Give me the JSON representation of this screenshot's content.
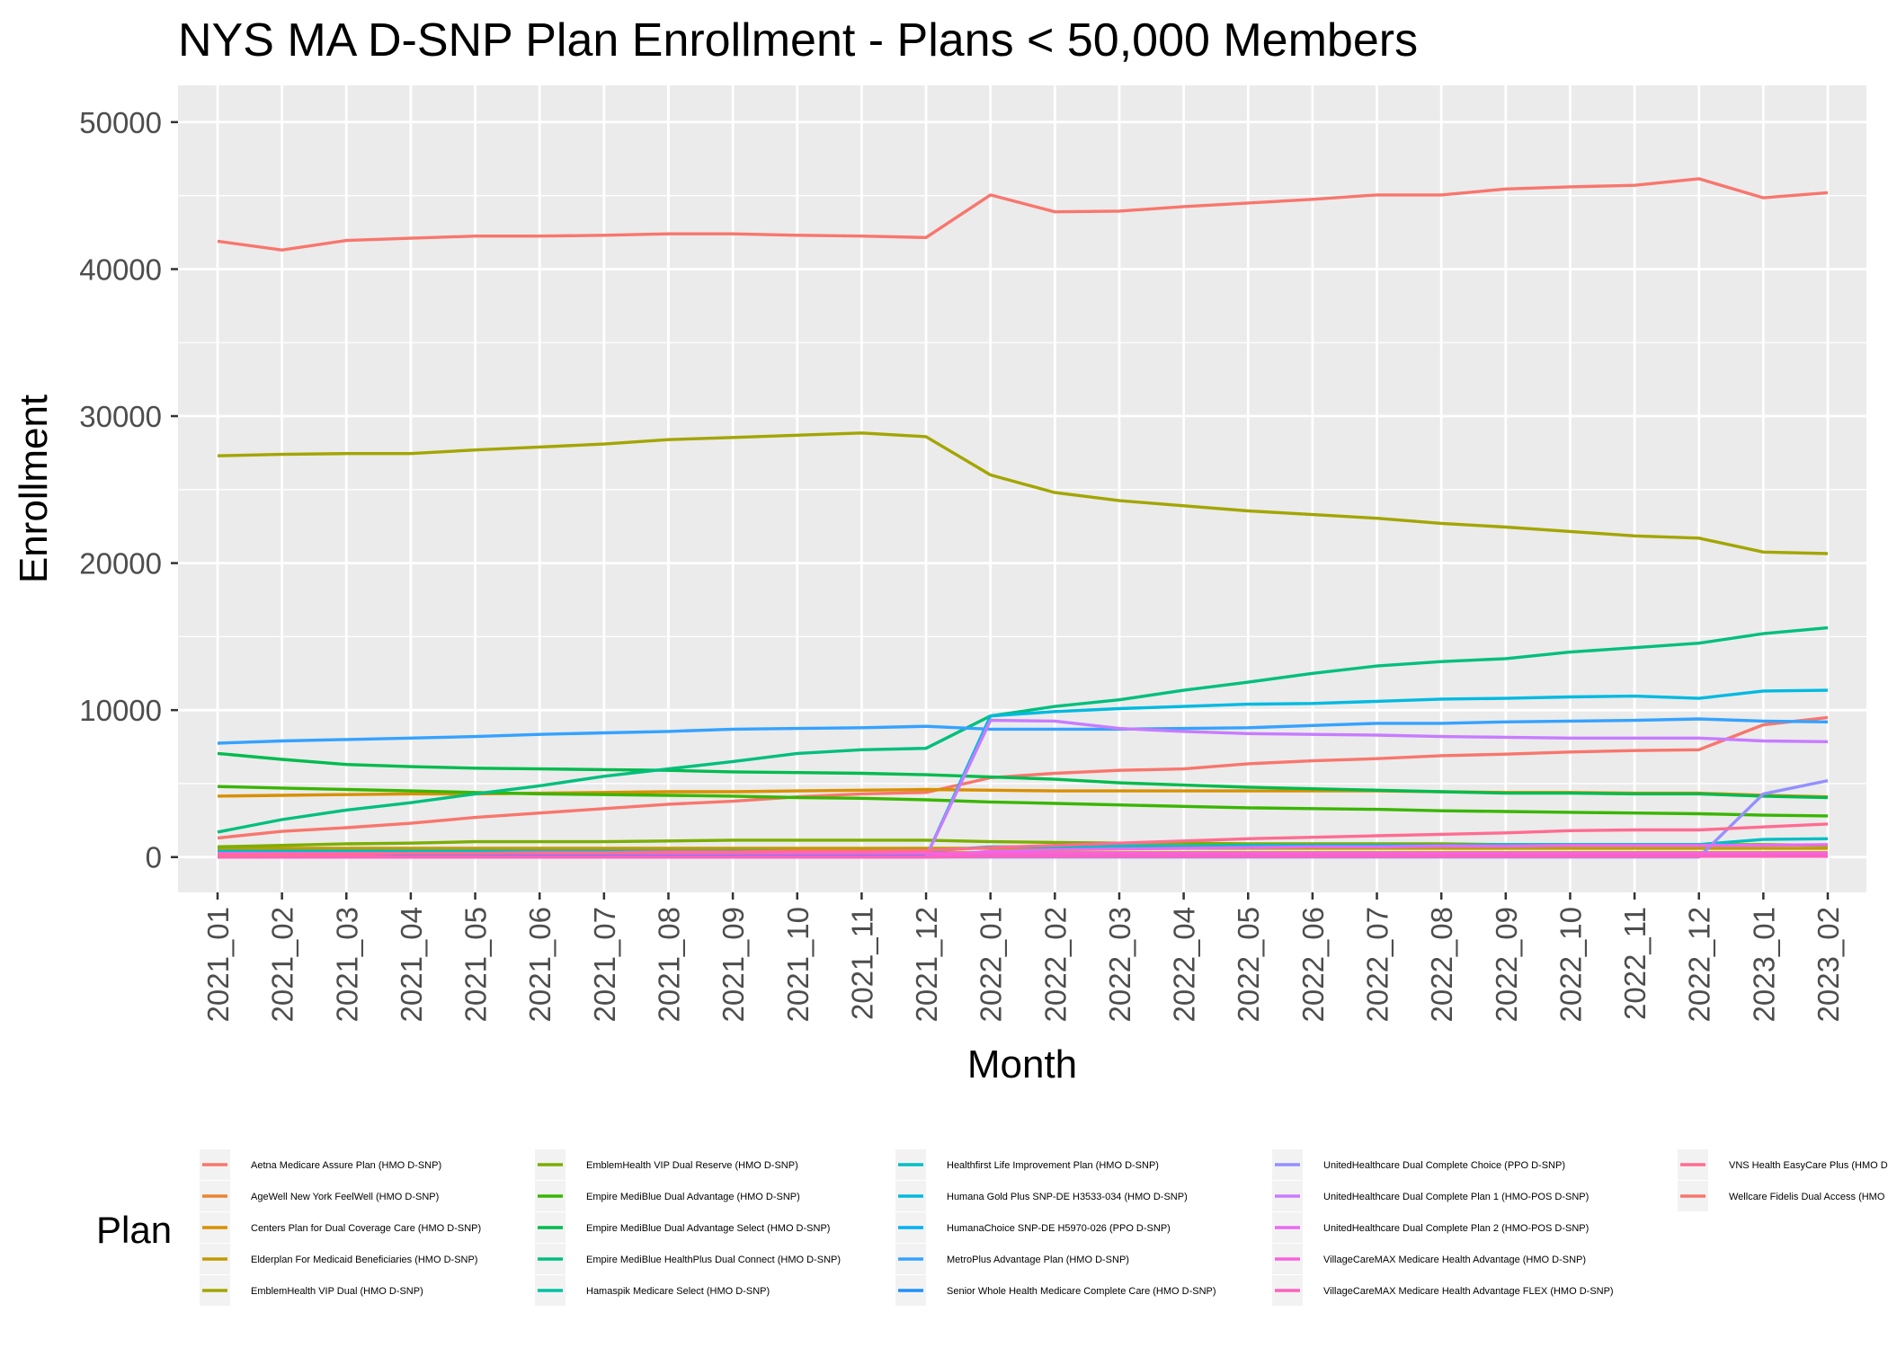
{
  "chart_data": {
    "type": "line",
    "title": "NYS MA D-SNP Plan Enrollment - Plans < 50,000 Members",
    "xlabel": "Month",
    "ylabel": "Enrollment",
    "ylim": [
      -2400,
      52500
    ],
    "yticks": [
      0,
      10000,
      20000,
      30000,
      40000,
      50000
    ],
    "grid": true,
    "legend_position": "bottom",
    "legend_title": "Plan",
    "x": [
      "2021_01",
      "2021_02",
      "2021_03",
      "2021_04",
      "2021_05",
      "2021_06",
      "2021_07",
      "2021_08",
      "2021_09",
      "2021_10",
      "2021_11",
      "2021_12",
      "2022_01",
      "2022_02",
      "2022_03",
      "2022_04",
      "2022_05",
      "2022_06",
      "2022_07",
      "2022_08",
      "2022_09",
      "2022_10",
      "2022_11",
      "2022_12",
      "2023_01",
      "2023_02"
    ],
    "series": [
      {
        "name": "Aetna Medicare Assure Plan (HMO D-SNP)",
        "color": "#F8766D",
        "values": [
          1300,
          1750,
          2000,
          2300,
          2700,
          3000,
          3300,
          3600,
          3800,
          4100,
          4300,
          4400,
          5400,
          5700,
          5900,
          6000,
          6350,
          6550,
          6700,
          6900,
          7000,
          7150,
          7250,
          7300,
          9000,
          9500
        ]
      },
      {
        "name": "AgeWell New York FeelWell (HMO D-SNP)",
        "color": "#EA8331",
        "values": [
          300,
          300,
          300,
          300,
          300,
          300,
          300,
          300,
          300,
          300,
          300,
          300,
          300,
          300,
          300,
          300,
          300,
          300,
          300,
          300,
          300,
          300,
          300,
          300,
          300,
          300
        ]
      },
      {
        "name": "Centers Plan for Dual Coverage Care (HMO D-SNP)",
        "color": "#D89000",
        "values": [
          4150,
          4200,
          4250,
          4300,
          4300,
          4350,
          4400,
          4450,
          4450,
          4500,
          4550,
          4600,
          4550,
          4500,
          4500,
          4500,
          4500,
          4500,
          4500,
          4450,
          4400,
          4400,
          4350,
          4350,
          4200,
          4100
        ]
      },
      {
        "name": "Elderplan For Medicaid Beneficiaries (HMO D-SNP)",
        "color": "#C09B00",
        "values": [
          600,
          600,
          600,
          600,
          600,
          600,
          600,
          600,
          600,
          600,
          600,
          600,
          600,
          600,
          600,
          600,
          600,
          600,
          600,
          600,
          600,
          600,
          600,
          600,
          600,
          600
        ]
      },
      {
        "name": "EmblemHealth VIP Dual (HMO D-SNP)",
        "color": "#A3A500",
        "values": [
          27300,
          27400,
          27450,
          27450,
          27700,
          27900,
          28100,
          28400,
          28550,
          28700,
          28850,
          28600,
          26000,
          24800,
          24250,
          23900,
          23550,
          23300,
          23050,
          22700,
          22450,
          22150,
          21850,
          21700,
          20750,
          20650
        ]
      },
      {
        "name": "EmblemHealth VIP Dual Reserve (HMO D-SNP)",
        "color": "#7CAE00",
        "values": [
          700,
          800,
          900,
          950,
          1050,
          1050,
          1050,
          1100,
          1150,
          1150,
          1150,
          1150,
          1050,
          1000,
          950,
          950,
          900,
          900,
          900,
          900,
          850,
          850,
          850,
          850,
          850,
          800
        ]
      },
      {
        "name": "Empire MediBlue Dual Advantage (HMO D-SNP)",
        "color": "#39B600",
        "values": [
          4800,
          4700,
          4600,
          4500,
          4400,
          4300,
          4250,
          4200,
          4150,
          4050,
          4000,
          3900,
          3750,
          3650,
          3550,
          3450,
          3350,
          3300,
          3250,
          3150,
          3100,
          3050,
          3000,
          2950,
          2850,
          2800
        ]
      },
      {
        "name": "Empire MediBlue Dual Advantage Select (HMO D-SNP)",
        "color": "#00BB4E",
        "values": [
          7050,
          6650,
          6300,
          6150,
          6050,
          6000,
          5950,
          5900,
          5800,
          5750,
          5700,
          5600,
          5450,
          5300,
          5050,
          4900,
          4750,
          4650,
          4550,
          4450,
          4350,
          4350,
          4300,
          4300,
          4150,
          4050
        ]
      },
      {
        "name": "Empire MediBlue HealthPlus Dual Connect (HMO D-SNP)",
        "color": "#00BF7D",
        "values": [
          1700,
          2550,
          3200,
          3700,
          4300,
          4850,
          5500,
          6000,
          6500,
          7050,
          7300,
          7400,
          9600,
          10250,
          10700,
          11350,
          11900,
          12500,
          13000,
          13300,
          13500,
          13950,
          14250,
          14550,
          15200,
          15600
        ]
      },
      {
        "name": "Hamaspik Medicare Select (HMO D-SNP)",
        "color": "#00C1A3",
        "values": [
          200,
          200,
          200,
          200,
          200,
          200,
          200,
          200,
          200,
          200,
          200,
          200,
          250,
          250,
          250,
          250,
          250,
          250,
          250,
          250,
          250,
          250,
          250,
          250,
          250,
          250
        ]
      },
      {
        "name": "Healthfirst Life Improvement Plan (HMO D-SNP)",
        "color": "#00BFC4",
        "values": [
          400,
          400,
          400,
          400,
          400,
          400,
          400,
          400,
          400,
          400,
          400,
          400,
          700,
          700,
          750,
          750,
          800,
          800,
          800,
          800,
          850,
          850,
          850,
          850,
          1200,
          1250
        ]
      },
      {
        "name": "Humana Gold Plus SNP-DE H3533-034 (HMO D-SNP)",
        "color": "#00BAE0",
        "values": [
          0,
          0,
          0,
          0,
          0,
          0,
          0,
          0,
          0,
          0,
          0,
          0,
          9600,
          9900,
          10100,
          10250,
          10400,
          10450,
          10600,
          10750,
          10800,
          10900,
          10950,
          10800,
          11300,
          11350
        ]
      },
      {
        "name": "HumanaChoice SNP-DE H5970-026 (PPO D-SNP)",
        "color": "#00B0F6",
        "values": [
          0,
          0,
          0,
          0,
          0,
          0,
          0,
          0,
          0,
          0,
          0,
          0,
          150,
          150,
          150,
          150,
          150,
          150,
          150,
          150,
          150,
          150,
          150,
          150,
          150,
          150
        ]
      },
      {
        "name": "MetroPlus Advantage Plan (HMO D-SNP)",
        "color": "#35A2FF",
        "values": [
          7750,
          7900,
          8000,
          8100,
          8200,
          8350,
          8450,
          8550,
          8700,
          8750,
          8800,
          8900,
          8700,
          8700,
          8700,
          8750,
          8800,
          8950,
          9100,
          9100,
          9200,
          9250,
          9300,
          9400,
          9250,
          9200
        ]
      },
      {
        "name": "Senior Whole Health Medicare Complete Care (HMO D-SNP)",
        "color": "#1E90FF",
        "values": [
          100,
          100,
          100,
          100,
          100,
          100,
          100,
          100,
          100,
          100,
          100,
          100,
          100,
          100,
          100,
          100,
          100,
          100,
          100,
          100,
          100,
          100,
          100,
          100,
          100,
          100
        ]
      },
      {
        "name": "UnitedHealthcare Dual Complete Choice (PPO D-SNP)",
        "color": "#9590FF",
        "values": [
          0,
          0,
          0,
          0,
          0,
          0,
          0,
          0,
          0,
          0,
          0,
          0,
          0,
          0,
          0,
          0,
          0,
          0,
          0,
          0,
          0,
          0,
          0,
          0,
          4300,
          5200
        ]
      },
      {
        "name": "UnitedHealthcare Dual Complete Plan 1 (HMO-POS D-SNP)",
        "color": "#C77CFF",
        "values": [
          0,
          0,
          0,
          0,
          0,
          0,
          0,
          0,
          0,
          0,
          0,
          0,
          9300,
          9250,
          8750,
          8550,
          8400,
          8350,
          8300,
          8200,
          8150,
          8100,
          8100,
          8100,
          7900,
          7850
        ]
      },
      {
        "name": "UnitedHealthcare Dual Complete Plan 2 (HMO-POS D-SNP)",
        "color": "#E76BF3",
        "values": [
          0,
          0,
          0,
          0,
          0,
          0,
          0,
          0,
          0,
          0,
          0,
          0,
          400,
          500,
          550,
          600,
          650,
          700,
          700,
          750,
          750,
          800,
          800,
          800,
          800,
          850
        ]
      },
      {
        "name": "VillageCareMAX Medicare Health Advantage (HMO D-SNP)",
        "color": "#FA62DB",
        "values": [
          250,
          250,
          250,
          250,
          250,
          250,
          250,
          250,
          250,
          250,
          250,
          250,
          250,
          250,
          250,
          250,
          250,
          250,
          250,
          250,
          250,
          250,
          250,
          250,
          250,
          250
        ]
      },
      {
        "name": "VillageCareMAX Medicare Health Advantage FLEX (HMO D-SNP)",
        "color": "#FF62BC",
        "values": [
          0,
          0,
          0,
          0,
          0,
          0,
          0,
          0,
          0,
          0,
          0,
          0,
          50,
          50,
          50,
          50,
          50,
          50,
          50,
          50,
          50,
          50,
          50,
          50,
          50,
          50
        ]
      },
      {
        "name": "VNS Health EasyCare Plus (HMO D-SNP)",
        "color": "#FF6C91",
        "values": [
          100,
          150,
          200,
          250,
          250,
          300,
          300,
          350,
          350,
          400,
          400,
          450,
          650,
          800,
          950,
          1100,
          1250,
          1350,
          1450,
          1550,
          1650,
          1800,
          1850,
          1850,
          2050,
          2250
        ]
      },
      {
        "name": "Wellcare Fidelis Dual Access (HMO D-SNP)",
        "color": "#F8766D",
        "values": [
          41900,
          41300,
          41950,
          42100,
          42250,
          42250,
          42300,
          42400,
          42400,
          42300,
          42250,
          42150,
          45050,
          43900,
          43950,
          44250,
          44500,
          44750,
          45050,
          45050,
          45450,
          45600,
          45700,
          46150,
          44850,
          45200
        ]
      }
    ]
  }
}
